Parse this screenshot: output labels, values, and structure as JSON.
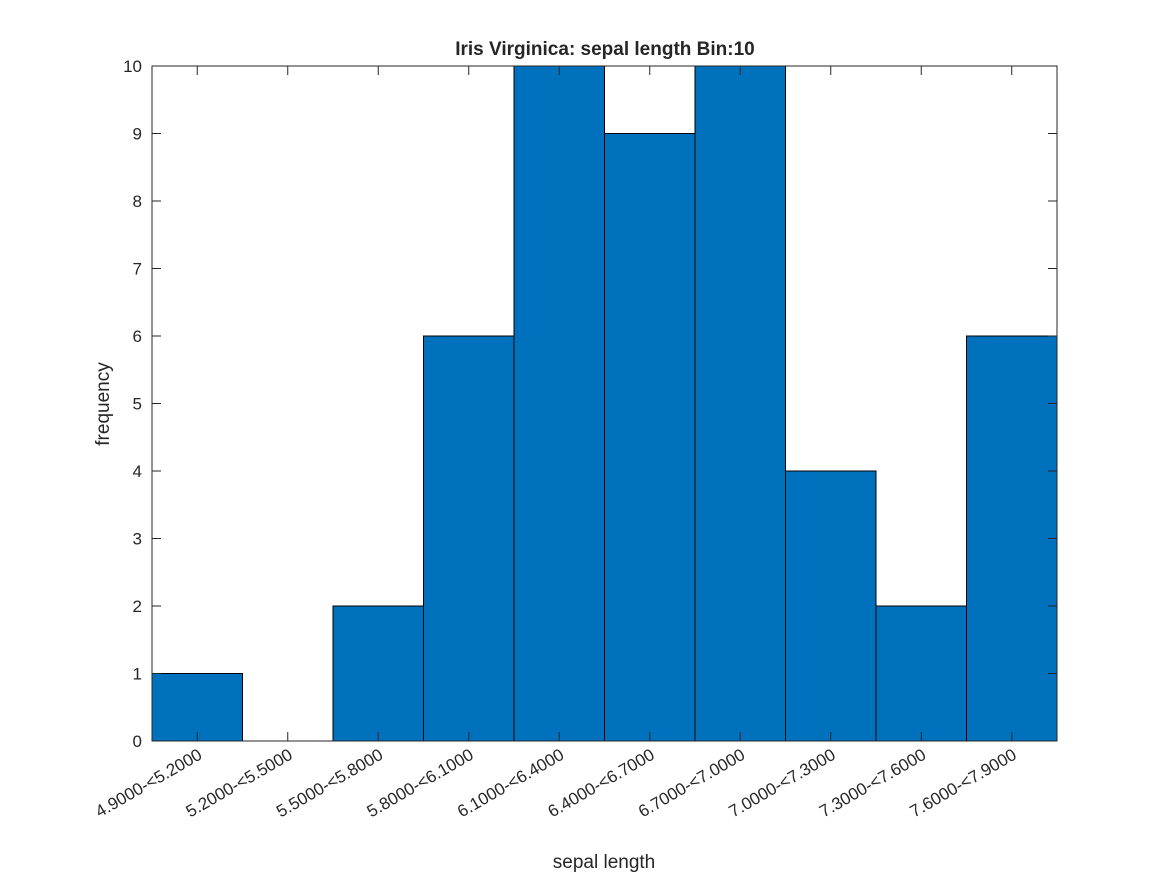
{
  "chart_data": {
    "type": "bar",
    "title": "Iris Virginica: sepal length Bin:10",
    "xlabel": "sepal length",
    "ylabel": "frequency",
    "categories": [
      "4.9000-<5.2000",
      "5.2000-<5.5000",
      "5.5000-<5.8000",
      "5.8000-<6.1000",
      "6.1000-<6.4000",
      "6.4000-<6.7000",
      "6.7000-<7.0000",
      "7.0000-<7.3000",
      "7.3000-<7.6000",
      "7.6000-<7.9000"
    ],
    "values": [
      1,
      0,
      2,
      6,
      10,
      9,
      10,
      4,
      2,
      6
    ],
    "ylim": [
      0,
      10
    ],
    "yticks": [
      0,
      1,
      2,
      3,
      4,
      5,
      6,
      7,
      8,
      9,
      10
    ],
    "grid": false,
    "bar_color": "#0072BD",
    "edge_color": "#000000",
    "axis_color": "#262626"
  }
}
